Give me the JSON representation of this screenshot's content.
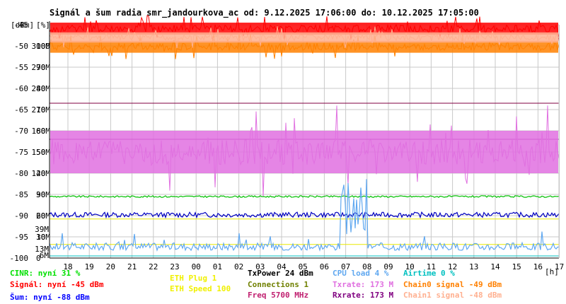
{
  "chart_data": {
    "type": "line",
    "title": "Signál a šum radia smr_jandourkova_ac od: 9.12.2025 17:06:00 do: 10.12.2025 17:05:00",
    "y_unit_labels": [
      "[dBm]",
      "[%]"
    ],
    "x_unit_label": "[h]",
    "ylim": [
      -100,
      -45
    ],
    "y_ticks": [
      {
        "dbm": "-45",
        "pct": "",
        "rate": "",
        "value": -45
      },
      {
        "dbm": "-50",
        "pct": "100",
        "rate": "300M",
        "value": -50
      },
      {
        "dbm": "-55",
        "pct": "90",
        "rate": "270M",
        "value": -55
      },
      {
        "dbm": "-60",
        "pct": "80",
        "rate": "240M",
        "value": -60
      },
      {
        "dbm": "-65",
        "pct": "70",
        "rate": "210M",
        "value": -65
      },
      {
        "dbm": "-70",
        "pct": "60",
        "rate": "180M",
        "value": -70
      },
      {
        "dbm": "-75",
        "pct": "50",
        "rate": "150M",
        "value": -75
      },
      {
        "dbm": "-80",
        "pct": "40",
        "rate": "120M",
        "value": -80
      },
      {
        "dbm": "-85",
        "pct": "30",
        "rate": "90M",
        "value": -85
      },
      {
        "dbm": "-90",
        "pct": "20",
        "rate": "60M",
        "value": -90
      },
      {
        "dbm": "-95",
        "pct": "10",
        "rate": "30M",
        "value": -95
      },
      {
        "dbm": "-100",
        "pct": "0",
        "rate": "",
        "value": -100
      }
    ],
    "side_markers": [
      {
        "label": "39M",
        "value": -93.2,
        "color": "#e070e0"
      },
      {
        "label": "13M",
        "value": -97.8,
        "color": "#e070e0"
      },
      {
        "label": "6M",
        "value": -99.3,
        "color": "#800080"
      }
    ],
    "x_ticks": [
      "18",
      "19",
      "20",
      "21",
      "22",
      "23",
      "00",
      "01",
      "02",
      "03",
      "04",
      "05",
      "06",
      "07",
      "08",
      "09",
      "10",
      "11",
      "12",
      "13",
      "14",
      "15",
      "16",
      "17"
    ],
    "series": [
      {
        "name": "Signál",
        "color": "#ff0000",
        "type": "band",
        "center": -45.9,
        "jitter": 0.7,
        "seed": 3
      },
      {
        "name": "Chain0 signal",
        "color": "#ff8000",
        "type": "band",
        "center": -50.2,
        "jitter": 0.7,
        "seed": 11
      },
      {
        "name": "Chain1 signal",
        "color": "#ffb090",
        "type": "band",
        "center": -48.0,
        "jitter": 0.6,
        "seed": 7
      },
      {
        "name": "Txrate",
        "color": "#e070e0",
        "type": "band",
        "center": -75.0,
        "jitter": 2.5,
        "seed": 5
      },
      {
        "name": "CINR",
        "color": "#00c000",
        "type": "line",
        "center": -85.5,
        "jitter": 0.2,
        "seed": 9
      },
      {
        "name": "Šum",
        "color": "#0000c0",
        "type": "line",
        "center": -89.8,
        "jitter": 0.6,
        "seed": 13
      },
      {
        "name": "CPU load",
        "color": "#60a8f0",
        "type": "noise",
        "center": -97.3,
        "jitter": 0.9,
        "seed": 17
      }
    ],
    "reference_lines": [
      {
        "name": "Rxrate",
        "value": -63.5,
        "color": "#800040"
      },
      {
        "name": "Rxrate",
        "value": -72.0,
        "color": "#800080"
      },
      {
        "name": "ETH Speed",
        "value": -90.8,
        "color": "#e8e800"
      },
      {
        "name": "ETH Plug",
        "value": -96.8,
        "color": "#e8e800"
      },
      {
        "name": "Airtime",
        "value": -99.5,
        "color": "#00c0c0"
      }
    ]
  },
  "legend": [
    {
      "text": "CINR: nyní 31 %",
      "color": "#00e000"
    },
    {
      "text": "Signál: nyní -45 dBm",
      "color": "#ff0000"
    },
    {
      "text": "Šum: nyní -88 dBm",
      "color": "#0000ff"
    },
    {
      "text": "ETH Plug 1",
      "color": "#f0f000"
    },
    {
      "text": "ETH Speed 100",
      "color": "#f0f000"
    },
    {
      "text": "TxPower 24 dBm",
      "color": "#000000"
    },
    {
      "text": "Connections 1",
      "color": "#708000"
    },
    {
      "text": "Freq 5700 MHz",
      "color": "#c02070"
    },
    {
      "text": "CPU load 4 %",
      "color": "#60a8f0"
    },
    {
      "text": "Txrate: 173 M",
      "color": "#e070e0"
    },
    {
      "text": "Rxrate: 173 M",
      "color": "#800080"
    },
    {
      "text": "Airtime 0 %",
      "color": "#00c0c0"
    },
    {
      "text": "Chain0 signal -49 dBm",
      "color": "#ff8000"
    },
    {
      "text": "Chain1 signal -48 dBm",
      "color": "#ffb090"
    }
  ]
}
